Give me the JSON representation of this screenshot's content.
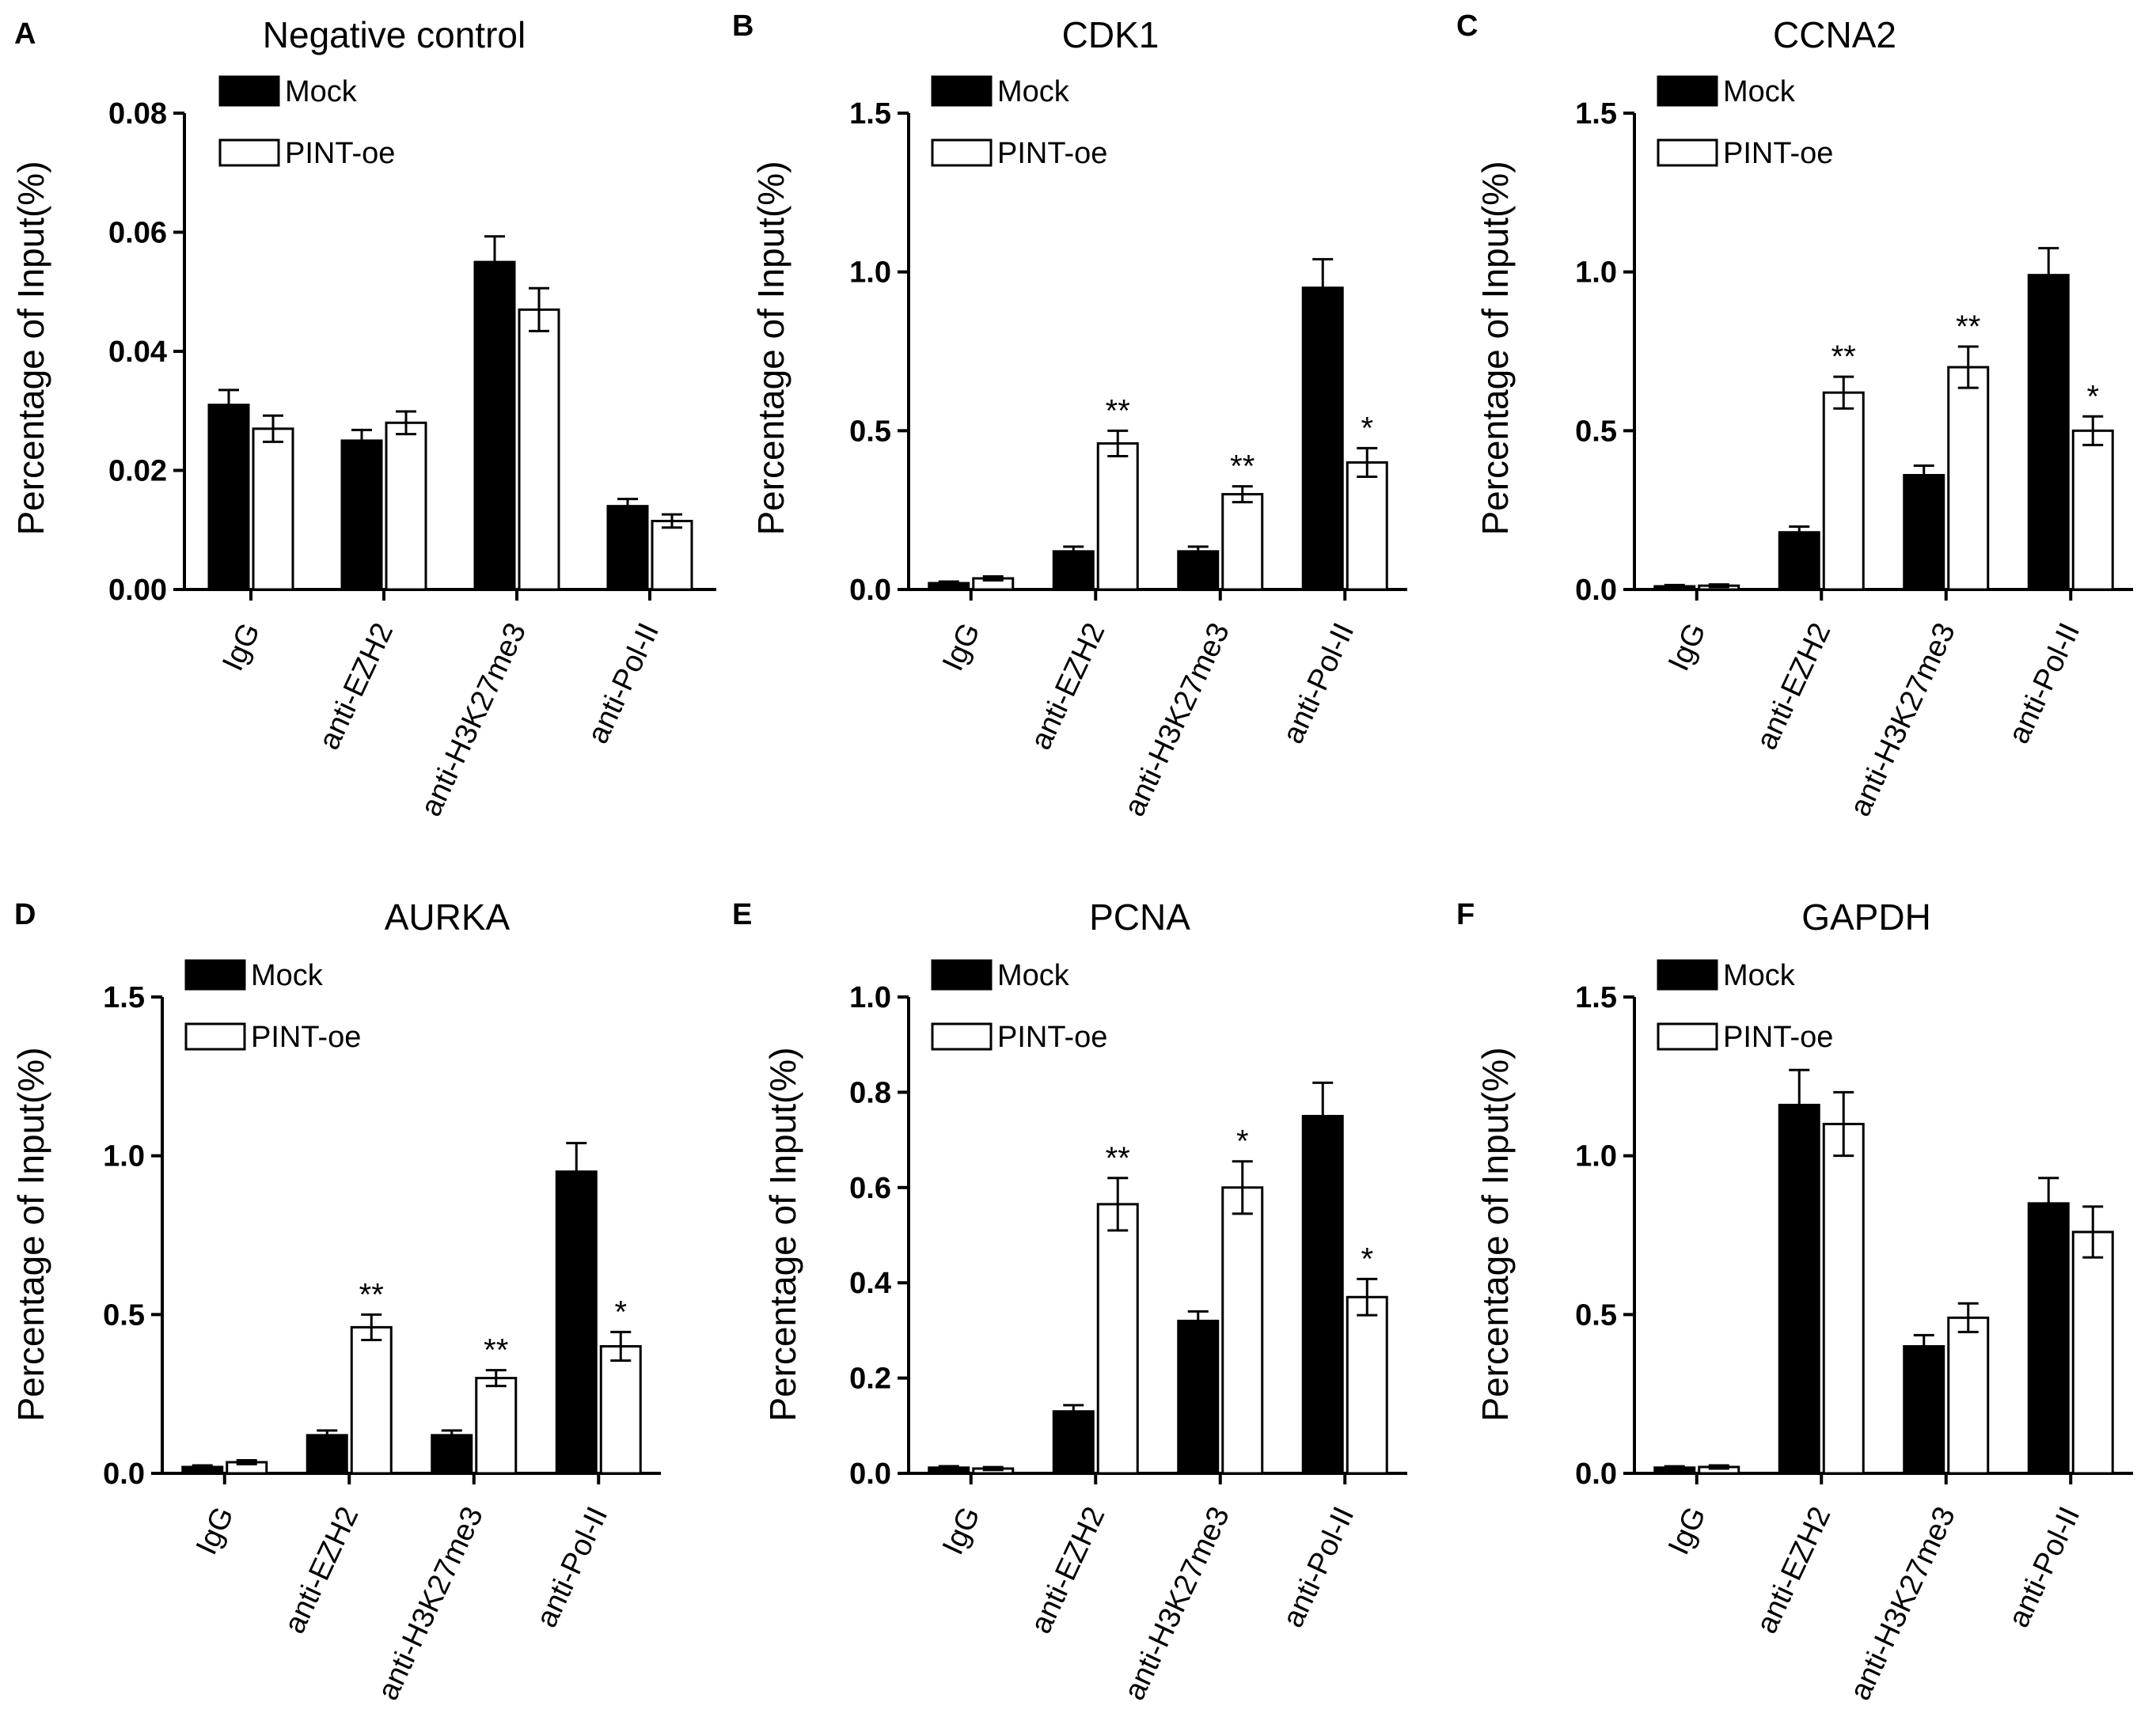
{
  "figure": {
    "legend": {
      "mock": "Mock",
      "oe": "PINT-oe"
    },
    "colors": {
      "mock": "#000000",
      "oe": "#ffffff",
      "stroke": "#000000"
    }
  },
  "chart_data": [
    {
      "panel": "A",
      "type": "bar",
      "title": "Negative control",
      "xlabel": "",
      "ylabel": "Percentage of Input(%)",
      "ylim": [
        0,
        0.08
      ],
      "yticks": [
        "0.00",
        "0.02",
        "0.04",
        "0.06",
        "0.08"
      ],
      "ytick_values": [
        0,
        0.02,
        0.04,
        0.06,
        0.08
      ],
      "categories": [
        "IgG",
        "anti-EZH2",
        "anti-H3K27me3",
        "anti-Pol-II"
      ],
      "series": [
        {
          "name": "Mock",
          "values": [
            0.031,
            0.025,
            0.055,
            0.014
          ],
          "errors": [
            0.0025,
            0.0018,
            0.0043,
            0.0012
          ],
          "sig": [
            "",
            "",
            "",
            ""
          ]
        },
        {
          "name": "PINT-oe",
          "values": [
            0.027,
            0.028,
            0.047,
            0.0115
          ],
          "errors": [
            0.0022,
            0.0019,
            0.0036,
            0.0011
          ],
          "sig": [
            "",
            "",
            "",
            ""
          ]
        }
      ]
    },
    {
      "panel": "B",
      "type": "bar",
      "title": "CDK1",
      "xlabel": "",
      "ylabel": "Percentage of Input(%)",
      "ylim": [
        0,
        1.5
      ],
      "yticks": [
        "0.0",
        "0.5",
        "1.0",
        "1.5"
      ],
      "ytick_values": [
        0,
        0.5,
        1.0,
        1.5
      ],
      "categories": [
        "IgG",
        "anti-EZH2",
        "anti-H3K27me3",
        "anti-Pol-II"
      ],
      "series": [
        {
          "name": "Mock",
          "values": [
            0.02,
            0.12,
            0.12,
            0.95
          ],
          "errors": [
            0.005,
            0.015,
            0.015,
            0.09
          ],
          "sig": [
            "",
            "",
            "",
            ""
          ]
        },
        {
          "name": "PINT-oe",
          "values": [
            0.035,
            0.46,
            0.3,
            0.4
          ],
          "errors": [
            0.006,
            0.04,
            0.025,
            0.045
          ],
          "sig": [
            "",
            "**",
            "**",
            "*"
          ]
        }
      ]
    },
    {
      "panel": "C",
      "type": "bar",
      "title": "CCNA2",
      "xlabel": "",
      "ylabel": "Percentage of Input(%)",
      "ylim": [
        0,
        1.5
      ],
      "yticks": [
        "0.0",
        "0.5",
        "1.0",
        "1.5"
      ],
      "ytick_values": [
        0,
        0.5,
        1.0,
        1.5
      ],
      "categories": [
        "IgG",
        "anti-EZH2",
        "anti-H3K27me3",
        "anti-Pol-II"
      ],
      "series": [
        {
          "name": "Mock",
          "values": [
            0.01,
            0.18,
            0.36,
            0.99
          ],
          "errors": [
            0.004,
            0.018,
            0.03,
            0.085
          ],
          "sig": [
            "",
            "",
            "",
            ""
          ]
        },
        {
          "name": "PINT-oe",
          "values": [
            0.012,
            0.62,
            0.7,
            0.5
          ],
          "errors": [
            0.004,
            0.05,
            0.065,
            0.045
          ],
          "sig": [
            "",
            "**",
            "**",
            "*"
          ]
        }
      ]
    },
    {
      "panel": "D",
      "type": "bar",
      "title": "AURKA",
      "xlabel": "",
      "ylabel": "Percentage of Input(%)",
      "ylim": [
        0,
        1.5
      ],
      "yticks": [
        "0.0",
        "0.5",
        "1.0",
        "1.5"
      ],
      "ytick_values": [
        0,
        0.5,
        1.0,
        1.5
      ],
      "categories": [
        "IgG",
        "anti-EZH2",
        "anti-H3K27me3",
        "anti-Pol-II"
      ],
      "series": [
        {
          "name": "Mock",
          "values": [
            0.02,
            0.12,
            0.12,
            0.95
          ],
          "errors": [
            0.005,
            0.015,
            0.015,
            0.09
          ],
          "sig": [
            "",
            "",
            "",
            ""
          ]
        },
        {
          "name": "PINT-oe",
          "values": [
            0.035,
            0.46,
            0.3,
            0.4
          ],
          "errors": [
            0.006,
            0.04,
            0.025,
            0.045
          ],
          "sig": [
            "",
            "**",
            "**",
            "*"
          ]
        }
      ]
    },
    {
      "panel": "E",
      "type": "bar",
      "title": "PCNA",
      "xlabel": "",
      "ylabel": "Percentage of Input(%)",
      "ylim": [
        0,
        1.0
      ],
      "yticks": [
        "0.0",
        "0.2",
        "0.4",
        "0.6",
        "0.8",
        "1.0"
      ],
      "ytick_values": [
        0,
        0.2,
        0.4,
        0.6,
        0.8,
        1.0
      ],
      "categories": [
        "IgG",
        "anti-EZH2",
        "anti-H3K27me3",
        "anti-Pol-II"
      ],
      "series": [
        {
          "name": "Mock",
          "values": [
            0.012,
            0.13,
            0.32,
            0.75
          ],
          "errors": [
            0.003,
            0.013,
            0.02,
            0.07
          ],
          "sig": [
            "",
            "",
            "",
            ""
          ]
        },
        {
          "name": "PINT-oe",
          "values": [
            0.01,
            0.565,
            0.6,
            0.37
          ],
          "errors": [
            0.003,
            0.055,
            0.055,
            0.038
          ],
          "sig": [
            "",
            "**",
            "*",
            "*"
          ]
        }
      ]
    },
    {
      "panel": "F",
      "type": "bar",
      "title": "GAPDH",
      "xlabel": "",
      "ylabel": "Percentage of Input(%)",
      "ylim": [
        0,
        1.5
      ],
      "yticks": [
        "0.0",
        "0.5",
        "1.0",
        "1.5"
      ],
      "ytick_values": [
        0,
        0.5,
        1.0,
        1.5
      ],
      "categories": [
        "IgG",
        "anti-EZH2",
        "anti-H3K27me3",
        "anti-Pol-II"
      ],
      "series": [
        {
          "name": "Mock",
          "values": [
            0.018,
            1.16,
            0.4,
            0.85
          ],
          "errors": [
            0.004,
            0.11,
            0.035,
            0.08
          ],
          "sig": [
            "",
            "",
            "",
            ""
          ]
        },
        {
          "name": "PINT-oe",
          "values": [
            0.02,
            1.1,
            0.49,
            0.76
          ],
          "errors": [
            0.005,
            0.1,
            0.045,
            0.08
          ],
          "sig": [
            "",
            "",
            "",
            ""
          ]
        }
      ]
    }
  ]
}
